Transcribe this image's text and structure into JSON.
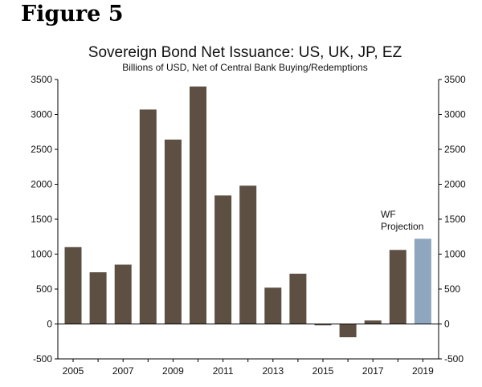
{
  "figure_label": "Figure 5",
  "chart_data": {
    "type": "bar",
    "title": "Sovereign Bond Net Issuance: US, UK, JP, EZ",
    "subtitle": "Billions of USD, Net of Central Bank Buying/Redemptions",
    "xlabel": "",
    "ylabel": "",
    "categories": [
      "2005",
      "2006",
      "2007",
      "2008",
      "2009",
      "2010",
      "2011",
      "2012",
      "2013",
      "2014",
      "2015",
      "2016",
      "2017",
      "2018",
      "2019"
    ],
    "values": [
      1100,
      740,
      850,
      3070,
      2640,
      3400,
      1840,
      1980,
      520,
      720,
      -20,
      -190,
      50,
      1060,
      1220
    ],
    "x_tick_labels": [
      "2005",
      "2007",
      "2009",
      "2011",
      "2013",
      "2015",
      "2017",
      "2019"
    ],
    "y_tick_labels": [
      "3500",
      "3000",
      "2500",
      "2000",
      "1500",
      "1000",
      "500",
      "0",
      "-500"
    ],
    "ylim": [
      -500,
      3500
    ],
    "y_step": 500,
    "grid": false,
    "secondary_axis_mirrors_primary": true,
    "projection_categories": [
      "2019"
    ],
    "annotation": {
      "line1": "WF",
      "line2": "Projection",
      "category": "2019"
    },
    "colors": {
      "bar": "#5e4f43",
      "projection": "#8ea7be",
      "axis": "#000000"
    }
  }
}
